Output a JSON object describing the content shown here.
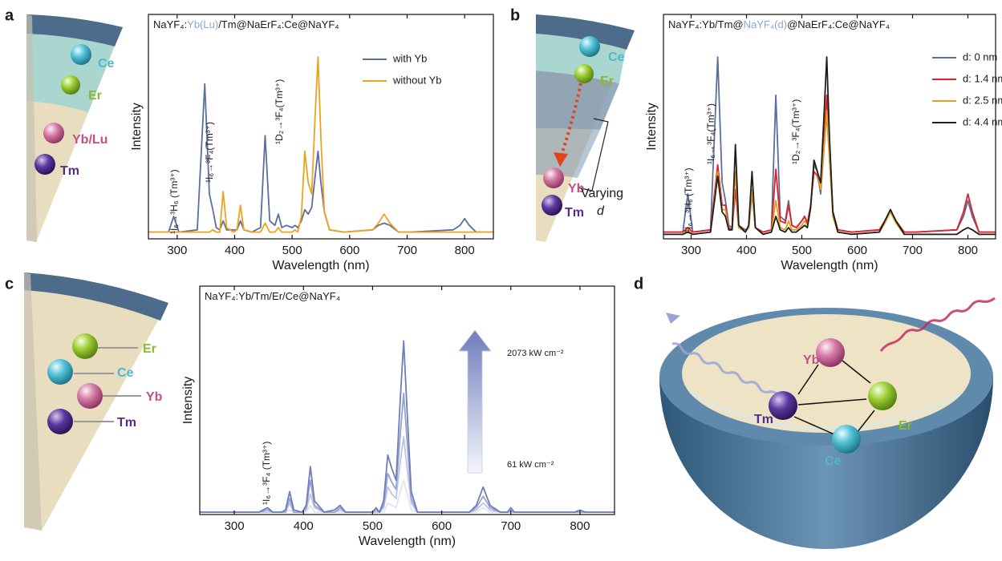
{
  "panel_labels": [
    "a",
    "b",
    "c",
    "d"
  ],
  "diagrams": [
    {
      "labels": [
        "Ce",
        "Er",
        "Yb/Lu",
        "Tm"
      ]
    },
    {
      "labels": [
        "Ce",
        "Er",
        "Yb",
        "Tm",
        "Varying",
        "d"
      ]
    },
    {
      "labels": [
        "Er",
        "Ce",
        "Yb",
        "Tm"
      ]
    },
    {
      "labels": [
        "Yb",
        "Er",
        "Tm",
        "Ce"
      ]
    }
  ],
  "chart_data": [
    {
      "type": "line",
      "title": [
        {
          "text": "NaYF₄:"
        },
        {
          "text": "Yb(Lu)",
          "color": "#8ea6cc"
        },
        {
          "text": "/Tm@NaErF₄:Ce@NaYF₄"
        }
      ],
      "x_label": "Wavelength (nm)",
      "y_label": "Intensity",
      "xlim": [
        250,
        850
      ],
      "xticks": [
        300,
        400,
        500,
        600,
        700,
        800
      ],
      "ylim": [
        0,
        100
      ],
      "legend": "upper right",
      "annotations": [
        "¹I₆→³H₆ (Tm³⁺)",
        "¹I₆→³F₄(Tm³⁺)",
        "¹D₂→³F₄(Tm³⁺)"
      ],
      "x": [
        250,
        285,
        294,
        303,
        335,
        348,
        356,
        362,
        368,
        374,
        380,
        386,
        398,
        404,
        410,
        416,
        430,
        445,
        453,
        461,
        470,
        476,
        482,
        490,
        500,
        505,
        510,
        516,
        522,
        528,
        534,
        540,
        545,
        550,
        556,
        565,
        590,
        640,
        650,
        660,
        670,
        685,
        695,
        700,
        705,
        780,
        792,
        800,
        808,
        820,
        850
      ],
      "series": [
        {
          "name": "with Yb",
          "color": "#5b6f9c",
          "values": [
            3,
            3,
            10,
            3,
            4,
            69,
            20,
            13,
            5,
            4,
            8,
            4,
            4,
            4,
            8,
            4,
            3,
            5,
            46,
            8,
            6,
            11,
            5,
            6,
            5,
            6,
            5,
            8,
            13,
            11,
            14,
            28,
            39,
            25,
            12,
            4,
            3,
            4,
            6,
            7,
            6,
            3,
            3,
            3,
            3,
            4,
            6,
            9,
            6,
            3,
            3
          ]
        },
        {
          "name": "without Yb",
          "color": "#eea21f",
          "values": [
            3,
            3,
            3,
            3,
            3,
            3,
            3,
            4,
            3,
            3,
            21,
            5,
            3,
            4,
            15,
            4,
            3,
            3,
            7,
            3,
            3,
            5,
            3,
            3,
            3,
            4,
            3,
            10,
            39,
            25,
            20,
            55,
            81,
            45,
            12,
            4,
            3,
            4,
            7,
            11,
            7,
            3,
            3,
            3,
            3,
            3,
            3,
            3,
            3,
            3,
            3
          ]
        }
      ]
    },
    {
      "type": "line",
      "title": [
        {
          "text": "NaYF₄:Yb/Tm@"
        },
        {
          "text": "NaYF₄(d)",
          "color": "#8ea6cc"
        },
        {
          "text": "@NaErF₄:Ce@NaYF₄"
        }
      ],
      "x_label": "Wavelength (nm)",
      "y_label": "Intensity",
      "xlim": [
        250,
        850
      ],
      "xticks": [
        300,
        400,
        500,
        600,
        700,
        800
      ],
      "ylim": [
        0,
        100
      ],
      "legend": "upper right",
      "annotations": [
        "¹I₆→³H₆ (Tm³⁺)",
        "¹I₆→³F₄(Tm³⁺)",
        "¹D₂→³F₄(Tm³⁺)"
      ],
      "x": [
        250,
        285,
        294,
        303,
        335,
        348,
        356,
        362,
        368,
        374,
        380,
        386,
        398,
        404,
        410,
        416,
        430,
        445,
        453,
        461,
        470,
        476,
        482,
        490,
        500,
        505,
        510,
        516,
        522,
        528,
        534,
        540,
        545,
        550,
        556,
        565,
        590,
        640,
        650,
        660,
        670,
        685,
        695,
        700,
        705,
        780,
        792,
        800,
        808,
        820,
        850
      ],
      "series": [
        {
          "name": "d: 0 nm",
          "color": "#5b6f9c",
          "values": [
            3,
            3,
            20,
            3,
            4,
            81,
            25,
            17,
            6,
            5,
            30,
            6,
            4,
            5,
            20,
            5,
            3,
            4,
            64,
            10,
            8,
            17,
            6,
            5,
            8,
            10,
            7,
            15,
            33,
            30,
            20,
            40,
            56,
            35,
            12,
            4,
            3,
            4,
            8,
            12,
            8,
            3,
            3,
            3,
            3,
            4,
            10,
            17,
            10,
            3,
            3
          ]
        },
        {
          "name": "d: 1.4 nm",
          "color": "#e0202a",
          "values": [
            3,
            3,
            5,
            3,
            4,
            33,
            15,
            15,
            5,
            4,
            22,
            5,
            3,
            5,
            22,
            5,
            3,
            4,
            31,
            8,
            7,
            15,
            6,
            5,
            8,
            10,
            7,
            15,
            30,
            28,
            22,
            45,
            64,
            40,
            12,
            4,
            3,
            4,
            8,
            13,
            8,
            3,
            3,
            3,
            3,
            4,
            12,
            20,
            12,
            3,
            3
          ]
        },
        {
          "name": "d: 2.5 nm",
          "color": "#e0a020",
          "values": [
            2,
            2,
            4,
            2,
            3,
            30,
            13,
            13,
            4,
            4,
            30,
            5,
            3,
            5,
            22,
            5,
            2,
            3,
            17,
            5,
            4,
            8,
            4,
            4,
            6,
            8,
            6,
            14,
            35,
            30,
            22,
            40,
            57,
            36,
            10,
            3,
            2,
            3,
            7,
            12,
            7,
            2,
            2,
            2,
            2,
            2,
            4,
            5,
            4,
            2,
            2
          ]
        },
        {
          "name": "d: 4.4 nm",
          "color": "#1e1e1e",
          "values": [
            2,
            2,
            3,
            2,
            3,
            28,
            12,
            10,
            4,
            4,
            42,
            6,
            3,
            6,
            30,
            5,
            2,
            3,
            10,
            4,
            3,
            5,
            3,
            3,
            5,
            6,
            5,
            14,
            35,
            30,
            25,
            55,
            81,
            45,
            12,
            3,
            2,
            3,
            8,
            13,
            8,
            2,
            2,
            2,
            2,
            2,
            4,
            5,
            4,
            2,
            2
          ]
        }
      ]
    },
    {
      "type": "line",
      "title": [
        {
          "text": "NaYF₄:Yb/Tm/Er/Ce@NaYF₄"
        }
      ],
      "x_label": "Wavelength (nm)",
      "y_label": "Intensity",
      "xlim": [
        250,
        850
      ],
      "xticks": [
        300,
        400,
        500,
        600,
        700,
        800
      ],
      "ylim": [
        0,
        100
      ],
      "annotations": [
        "¹I₆→³F₄ (Tm³⁺)",
        "2073 kW cm⁻²",
        "61 kW cm⁻²"
      ],
      "x": [
        250,
        285,
        294,
        303,
        335,
        348,
        356,
        362,
        368,
        374,
        380,
        386,
        398,
        404,
        410,
        416,
        430,
        445,
        453,
        461,
        470,
        476,
        482,
        490,
        500,
        505,
        510,
        516,
        522,
        528,
        534,
        540,
        545,
        550,
        556,
        565,
        590,
        640,
        650,
        660,
        670,
        685,
        695,
        700,
        705,
        780,
        792,
        800,
        808,
        820,
        850
      ],
      "series": [
        {
          "color": "#dfe3f2",
          "values": [
            1,
            1,
            1,
            1,
            1,
            1,
            1,
            1,
            1,
            1,
            2,
            1,
            1,
            1,
            4,
            1,
            1,
            1,
            1,
            1,
            1,
            1,
            1,
            1,
            1,
            1,
            1,
            1,
            5,
            4,
            3,
            10,
            15,
            9,
            2,
            1,
            1,
            1,
            1,
            3,
            1,
            1,
            1,
            1,
            1,
            1,
            1,
            1,
            1,
            1,
            1
          ]
        },
        {
          "color": "#bcc4e2",
          "values": [
            1,
            1,
            1,
            1,
            1,
            1,
            1,
            1,
            1,
            1,
            5,
            1,
            1,
            2,
            9,
            3,
            1,
            1,
            2,
            1,
            1,
            1,
            1,
            1,
            1,
            1,
            1,
            3,
            12,
            9,
            7,
            23,
            34,
            20,
            5,
            1,
            1,
            1,
            2,
            5,
            2,
            1,
            1,
            1,
            1,
            1,
            1,
            1,
            1,
            1,
            1
          ]
        },
        {
          "color": "#97a2d0",
          "values": [
            1,
            1,
            1,
            1,
            1,
            2,
            1,
            1,
            1,
            1,
            7,
            1,
            1,
            3,
            15,
            4,
            1,
            1,
            3,
            1,
            1,
            1,
            1,
            1,
            1,
            2,
            1,
            4,
            18,
            14,
            11,
            35,
            53,
            32,
            7,
            1,
            1,
            1,
            3,
            8,
            3,
            1,
            1,
            2,
            1,
            1,
            1,
            1,
            1,
            1,
            1
          ]
        },
        {
          "color": "#6f7dbb",
          "values": [
            1,
            1,
            1,
            1,
            1,
            3,
            1,
            1,
            1,
            2,
            10,
            2,
            1,
            4,
            21,
            6,
            1,
            2,
            4,
            1,
            1,
            1,
            1,
            1,
            1,
            3,
            1,
            6,
            26,
            20,
            15,
            50,
            76,
            45,
            10,
            1,
            1,
            1,
            4,
            12,
            4,
            1,
            1,
            3,
            1,
            1,
            1,
            2,
            1,
            1,
            1
          ]
        }
      ]
    }
  ]
}
